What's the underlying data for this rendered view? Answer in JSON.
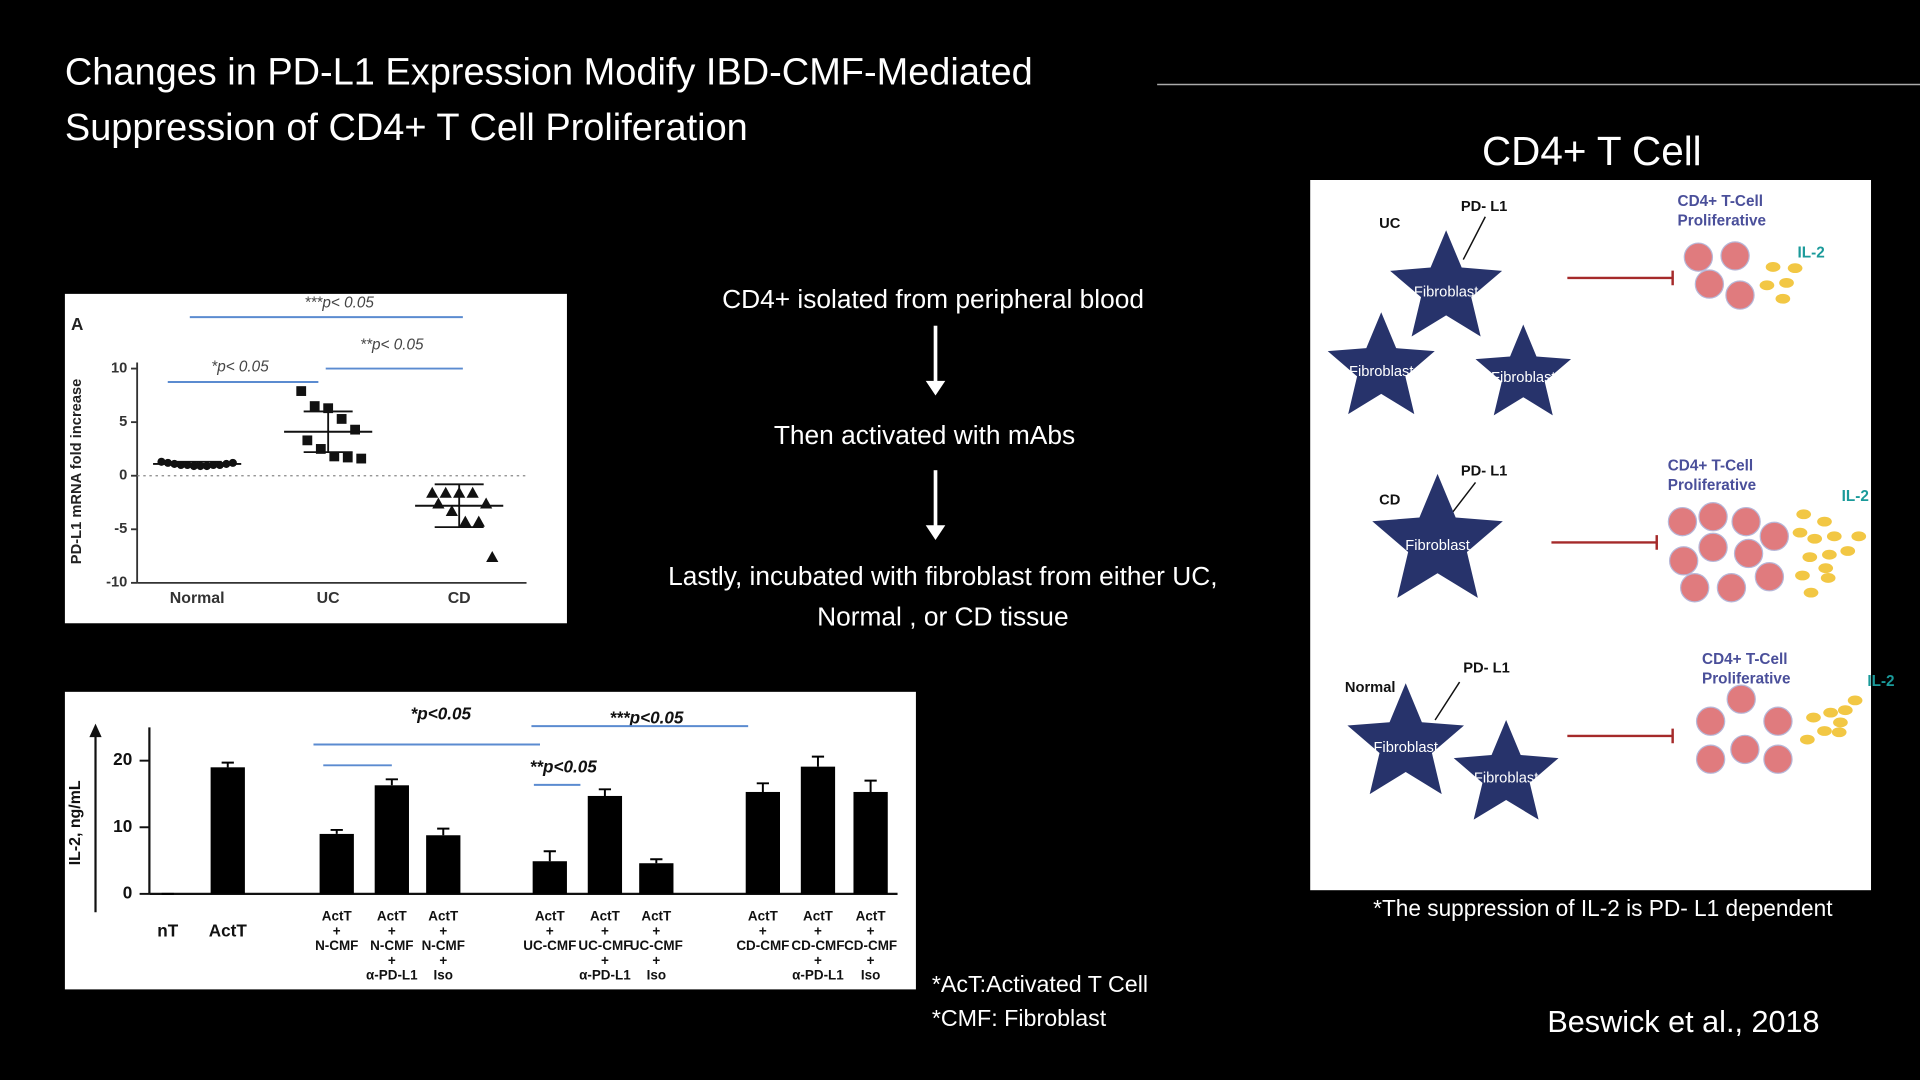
{
  "slide": {
    "title": [
      "Changes in PD-L1 Expression Modify IBD-CMF-Mediated",
      "Suppression of CD4+ T Cell Proliferation"
    ],
    "steps": [
      [
        "CD4+ isolated from peripheral blood"
      ],
      [
        "Then activated with mAbs"
      ],
      [
        "Lastly, incubated with fibroblast from either UC,",
        "Normal , or CD tissue"
      ]
    ],
    "footnotes": [
      "*AcT:Activated T Cell",
      "*CMF: Fibroblast"
    ],
    "citation": "Beswick et al., 2018"
  },
  "diagram": {
    "title": "CD4+ T Cell",
    "caption": "*The suppression of IL-2 is PD- L1 dependent",
    "panels": [
      {
        "tissue": "UC",
        "marker": "PD- L1",
        "fibroblasts": [
          "Fibroblast",
          "Fibroblast",
          "Fibroblast"
        ],
        "cells": [
          "CD4+ T-Cell",
          "Proliferative"
        ],
        "cytokine": "IL-2"
      },
      {
        "tissue": "CD",
        "marker": "PD- L1",
        "fibroblasts": [
          "Fibroblast"
        ],
        "cells": [
          "CD4+ T-Cell",
          "Proliferative"
        ],
        "cytokine": "IL-2"
      },
      {
        "tissue": "Normal",
        "marker": "PD- L1",
        "fibroblasts": [
          "Fibroblast",
          "Fibroblast"
        ],
        "cells": [
          "CD4+ T-Cell",
          "Proliferative"
        ],
        "cytokine": "IL-2"
      }
    ]
  },
  "chart_data": [
    {
      "type": "dot",
      "panel_label": "A",
      "y_label": "PD-L1 mRNA fold increase",
      "categories": [
        "Normal",
        "UC",
        "CD"
      ],
      "markers": [
        "circle",
        "square",
        "triangle"
      ],
      "values": [
        [
          1.3,
          1.2,
          1.1,
          1.0,
          1.0,
          0.9,
          0.9,
          0.9,
          1.0,
          1.0,
          1.1,
          1.2
        ],
        [
          7.9,
          6.5,
          6.3,
          5.3,
          4.3,
          3.3,
          2.5,
          1.8,
          1.7,
          1.6
        ],
        [
          -1.6,
          -1.6,
          -1.6,
          -1.6,
          -2.6,
          -2.6,
          -3.3,
          -4.3,
          -4.3,
          -7.6
        ]
      ],
      "mean": [
        1.1,
        4.1,
        -2.8
      ],
      "error": [
        0.2,
        1.9,
        2.0
      ],
      "ylim": [
        -10,
        10
      ],
      "yticks": [
        -10,
        -5,
        0,
        5,
        10
      ],
      "annotations": [
        "***p< 0.05",
        "*p< 0.05",
        "**p< 0.05"
      ]
    },
    {
      "type": "bar",
      "y_label": "IL-2, ng/mL",
      "color": "#000000",
      "categories": [
        [
          "nT"
        ],
        [
          "ActT"
        ],
        [
          "ActT",
          "+",
          "N-CMF"
        ],
        [
          "ActT",
          "+",
          "N-CMF",
          "+",
          "α-PD-L1"
        ],
        [
          "ActT",
          "+",
          "N-CMF",
          "+",
          "Iso"
        ],
        [
          "ActT",
          "+",
          "UC-CMF"
        ],
        [
          "ActT",
          "+",
          "UC-CMF",
          "+",
          "α-PD-L1"
        ],
        [
          "ActT",
          "+",
          "UC-CMF",
          "+",
          "Iso"
        ],
        [
          "ActT",
          "+",
          "CD-CMF"
        ],
        [
          "ActT",
          "+",
          "CD-CMF",
          "+",
          "α-PD-L1"
        ],
        [
          "ActT",
          "+",
          "CD-CMF",
          "+",
          "Iso"
        ]
      ],
      "values": [
        0,
        19,
        9,
        16.3,
        8.8,
        4.9,
        14.7,
        4.6,
        15.3,
        19.1,
        15.3
      ],
      "error": [
        0,
        0.7,
        0.6,
        0.9,
        1.0,
        1.5,
        1.0,
        0.6,
        1.3,
        1.5,
        1.7
      ],
      "ylim": [
        0,
        25
      ],
      "yticks": [
        0,
        10,
        20
      ],
      "annotations": [
        "*p<0.05",
        "***p<0.05",
        "**p<0.05"
      ]
    }
  ]
}
